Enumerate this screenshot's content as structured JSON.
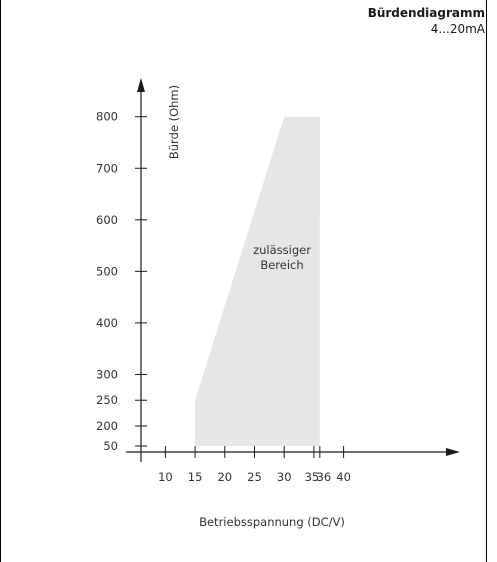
{
  "header": {
    "title": "Bürdendiagramm",
    "subtitle": "4...20mA"
  },
  "chart_data": {
    "type": "area",
    "title": "Bürdendiagramm",
    "subtitle": "4...20mA",
    "xlabel": "Betriebsspannung (DC/V)",
    "ylabel": "Bürde (Ohm)",
    "x_ticks": [
      10,
      15,
      20,
      25,
      30,
      35,
      36,
      40
    ],
    "x_tick_labels": [
      "10",
      "15",
      "20",
      "25",
      "30",
      "35",
      "36",
      "40"
    ],
    "y_ticks": [
      50,
      200,
      250,
      300,
      400,
      500,
      600,
      700,
      800
    ],
    "y_tick_labels": [
      "50",
      "200",
      "250",
      "300",
      "400",
      "500",
      "600",
      "700",
      "800"
    ],
    "region_polygon": [
      {
        "x": 15,
        "y": 50
      },
      {
        "x": 15,
        "y": 250
      },
      {
        "x": 30,
        "y": 800
      },
      {
        "x": 36,
        "y": 800
      },
      {
        "x": 36,
        "y": 50
      }
    ],
    "region_label": [
      "zulässiger",
      "Bereich"
    ],
    "region_color": "#e6e6e6",
    "axis_color": "#1a1a1a",
    "grid": false
  }
}
